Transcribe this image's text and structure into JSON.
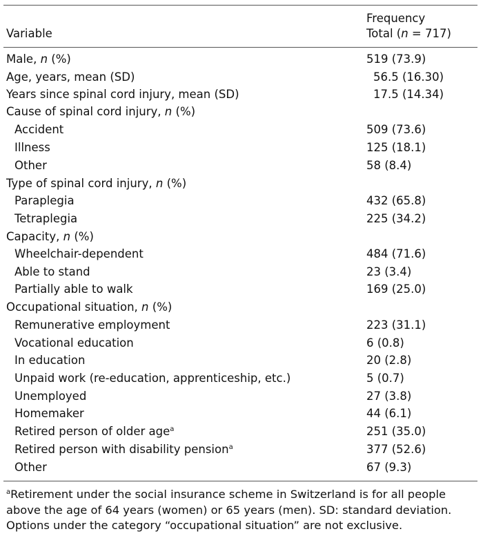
{
  "table": {
    "header": {
      "variable": "Variable",
      "frequency": "Frequency",
      "total_prefix": "Total (",
      "total_n": "n",
      "total_suffix": " = 717)"
    },
    "rows": [
      {
        "label": "Male, ",
        "italic": "n",
        "label_suffix": " (%)",
        "value": "519 (73.9)"
      },
      {
        "label": "Age, years, mean (SD)",
        "value": "56.5 (16.30)"
      },
      {
        "label": "Years since spinal cord injury, mean (SD)",
        "value": "17.5 (14.34)"
      },
      {
        "label": "Cause of spinal cord injury, ",
        "italic": "n",
        "label_suffix": " (%)",
        "value": ""
      },
      {
        "label": "Accident",
        "value": "509 (73.6)"
      },
      {
        "label": "Illness",
        "value": "125 (18.1)"
      },
      {
        "label": "Other",
        "value": "58 (8.4)"
      },
      {
        "label": "Type of spinal cord injury, ",
        "italic": "n",
        "label_suffix": " (%)",
        "value": ""
      },
      {
        "label": "Paraplegia",
        "value": "432 (65.8)"
      },
      {
        "label": "Tetraplegia",
        "value": "225 (34.2)"
      },
      {
        "label": "Capacity, ",
        "italic": "n",
        "label_suffix": " (%)",
        "value": ""
      },
      {
        "label": "Wheelchair-dependent",
        "value": "484 (71.6)"
      },
      {
        "label": "Able to stand",
        "value": "23 (3.4)"
      },
      {
        "label": "Partially able to walk",
        "value": "169 (25.0)"
      },
      {
        "label": "Occupational situation, ",
        "italic": "n",
        "label_suffix": " (%)",
        "value": ""
      },
      {
        "label": "Remunerative employment",
        "value": "223 (31.1)"
      },
      {
        "label": "Vocational education",
        "value": "6 (0.8)"
      },
      {
        "label": "In education",
        "value": "20 (2.8)"
      },
      {
        "label": "Unpaid work (re-education, apprenticeship, etc.)",
        "value": "5 (0.7)"
      },
      {
        "label": "Unemployed",
        "value": "27 (3.8)"
      },
      {
        "label": "Homemaker",
        "value": "44 (6.1)"
      },
      {
        "label": "Retired person of older age",
        "sup": "a",
        "value": "251 (35.0)"
      },
      {
        "label": "Retired person with disability pension",
        "sup": "a",
        "value": "377 (52.6)"
      },
      {
        "label": "Other",
        "value": "67 (9.3)"
      }
    ],
    "footnote": {
      "marker": "a",
      "line1": "Retirement under the social insurance scheme in Switzerland is for all people",
      "line2": "above the age of 64 years (women) or 65 years (men). SD: standard deviation.",
      "line3": "Options under the category “occupational situation” are not exclusive."
    }
  }
}
